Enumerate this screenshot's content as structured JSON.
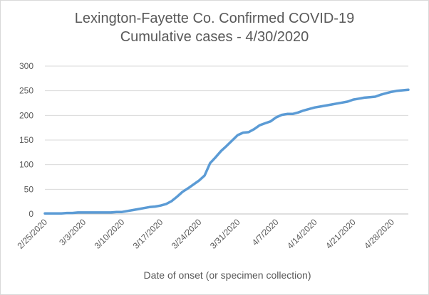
{
  "chart_data": {
    "type": "line",
    "title_line1": "Lexington-Fayette Co. Confirmed COVID-19",
    "title_line2": "Cumulative cases - 4/30/2020",
    "xlabel": "Date of onset (or specimen collection)",
    "ylabel": "",
    "ylim": [
      0,
      300
    ],
    "yticks": [
      0,
      50,
      100,
      150,
      200,
      250,
      300
    ],
    "xtick_labels": [
      "2/25/2020",
      "3/3/2020",
      "3/10/2020",
      "3/17/2020",
      "3/24/2020",
      "3/31/2020",
      "4/7/2020",
      "4/14/2020",
      "4/21/2020",
      "4/28/2020"
    ],
    "grid": true,
    "legend": "none",
    "line_color": "#5b9bd5",
    "x_start": "2020-02-25",
    "x_end": "2020-04-30",
    "series": [
      {
        "values": [
          1,
          1,
          1,
          1,
          2,
          2,
          3,
          3,
          3,
          3,
          3,
          3,
          3,
          4,
          4,
          6,
          8,
          10,
          12,
          14,
          15,
          17,
          20,
          26,
          35,
          45,
          52,
          60,
          68,
          78,
          103,
          115,
          128,
          138,
          149,
          160,
          165,
          166,
          172,
          180,
          184,
          188,
          196,
          201,
          203,
          203,
          206,
          210,
          213,
          216,
          218,
          220,
          222,
          224,
          226,
          228,
          232,
          234,
          236,
          237,
          238,
          242,
          245,
          248,
          250,
          251,
          252
        ]
      }
    ]
  }
}
